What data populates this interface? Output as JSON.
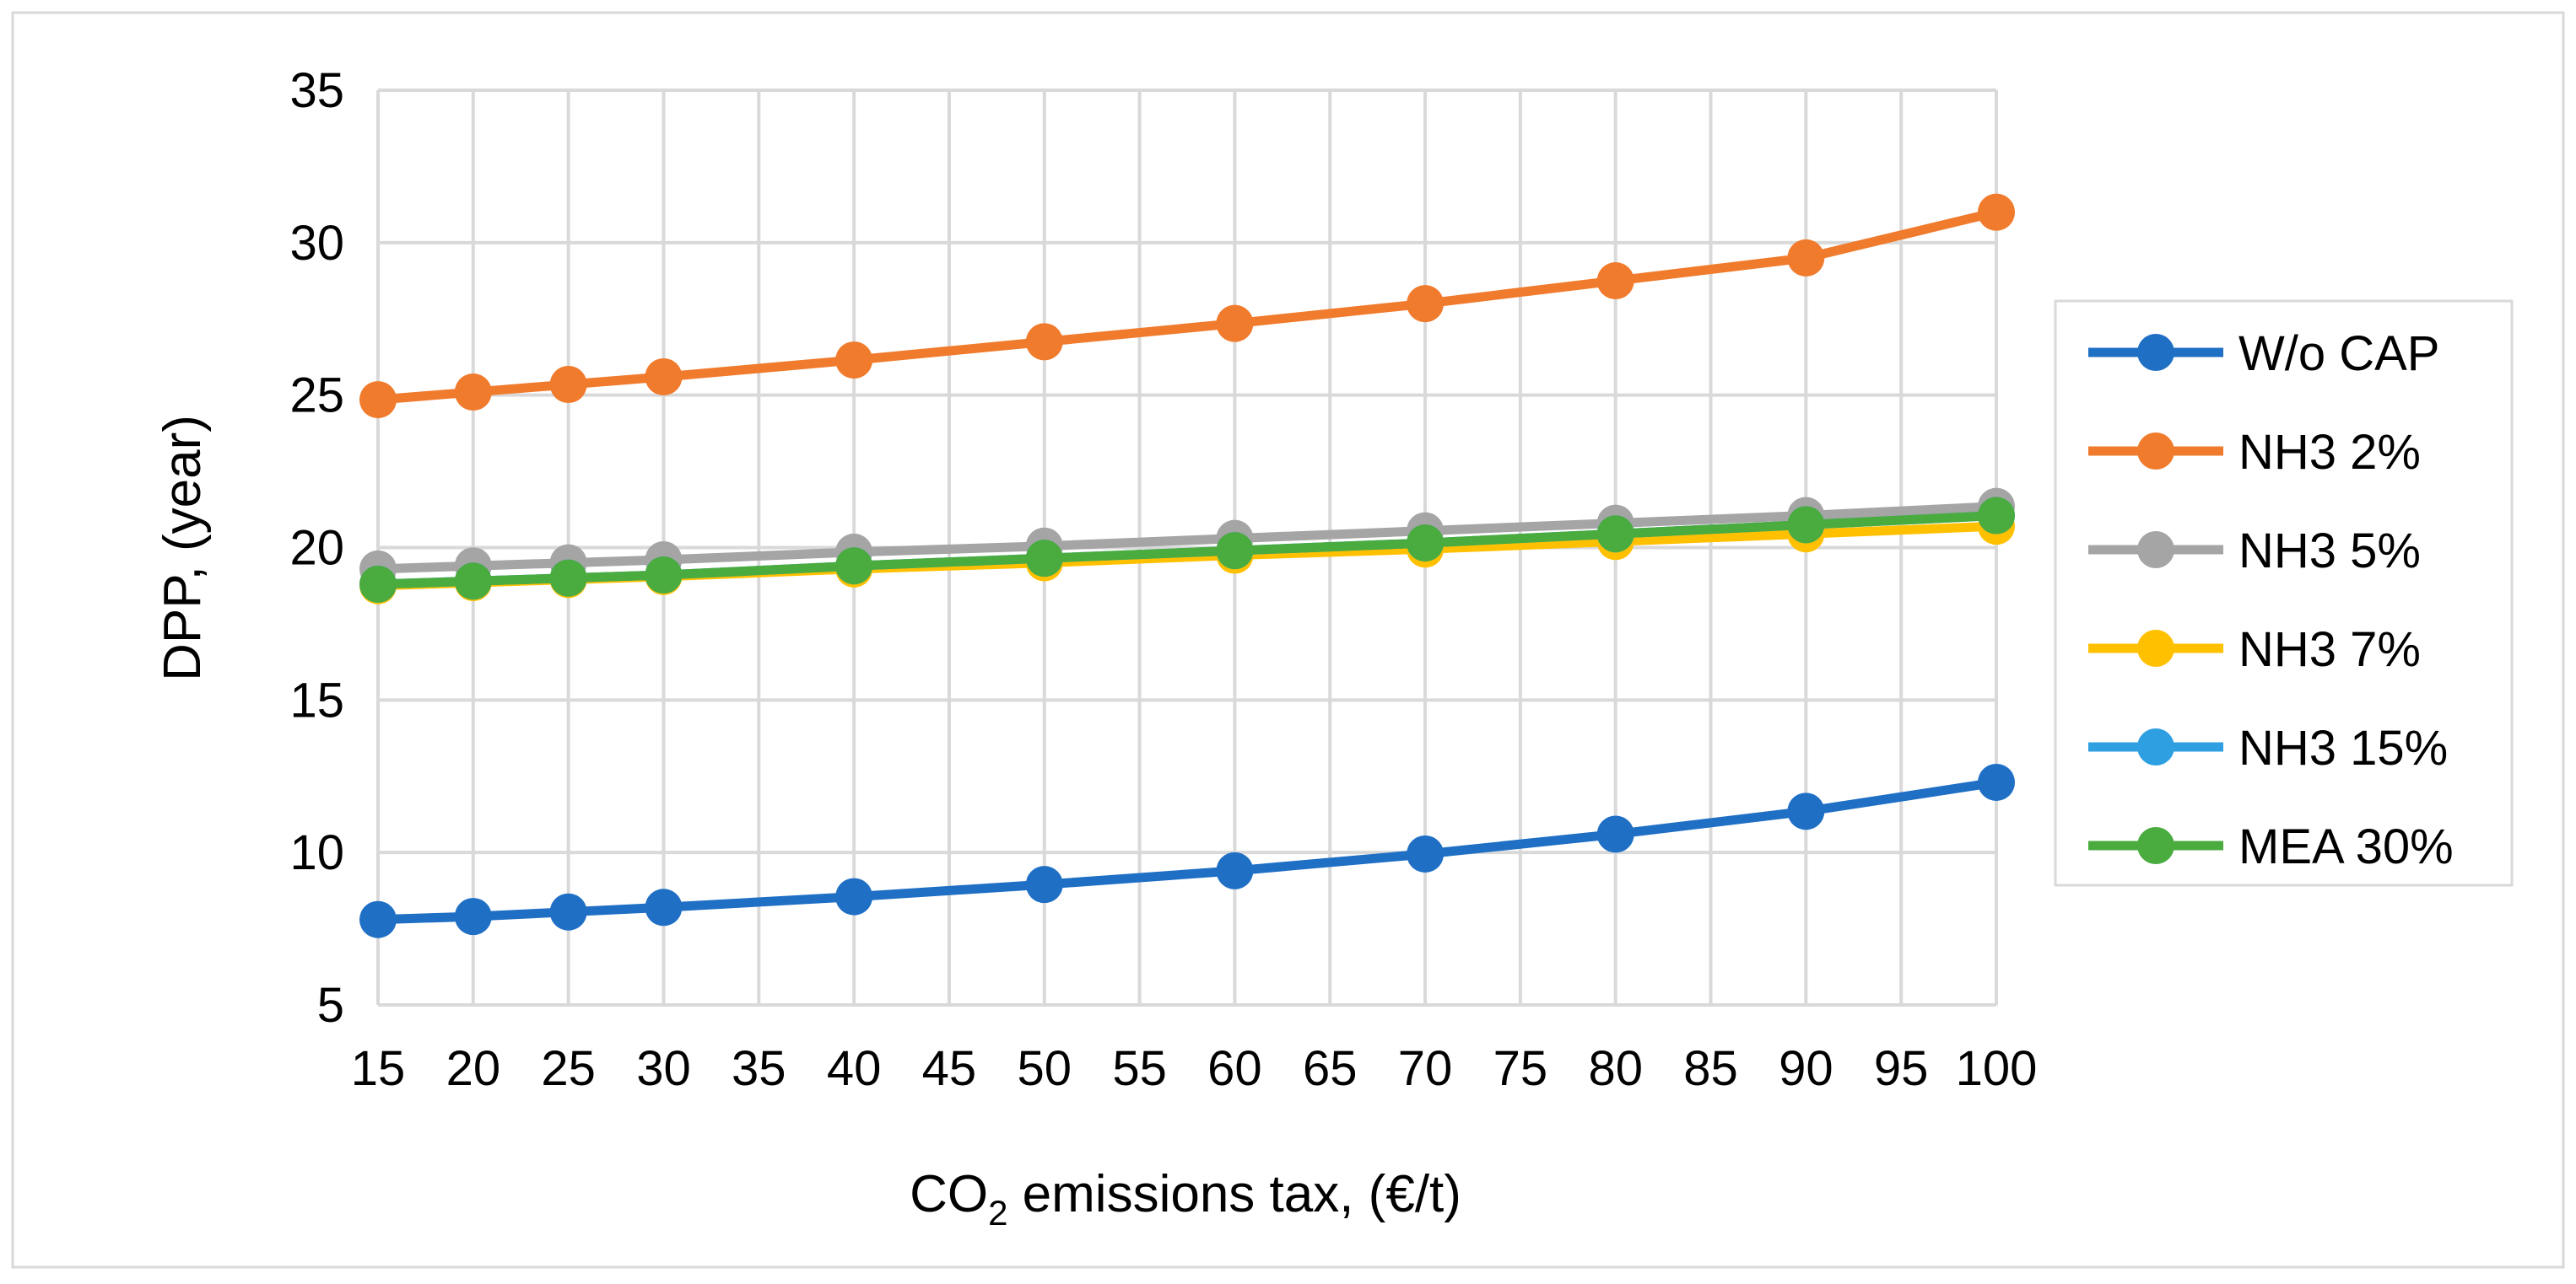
{
  "chart_data": {
    "type": "line",
    "title": "",
    "xlabel": "CO",
    "xlabel_subscript": "2",
    "xlabel_rest": " emissions tax, (€/t)",
    "ylabel": "DPP, (year)",
    "xlim": [
      15,
      100
    ],
    "ylim": [
      5,
      35
    ],
    "x_ticks": [
      15,
      20,
      25,
      30,
      35,
      40,
      45,
      50,
      55,
      60,
      65,
      70,
      75,
      80,
      85,
      90,
      95,
      100
    ],
    "y_ticks": [
      5,
      10,
      15,
      20,
      25,
      30,
      35
    ],
    "grid": true,
    "legend_position": "right",
    "x": [
      15,
      20,
      25,
      30,
      40,
      50,
      60,
      70,
      80,
      90,
      100
    ],
    "series": [
      {
        "name": "W/o CAP",
        "color": "#1f6fc5",
        "values": [
          7.8,
          7.9,
          8.05,
          8.2,
          8.55,
          8.95,
          9.4,
          9.95,
          10.6,
          11.35,
          12.3
        ]
      },
      {
        "name": "NH3 2%",
        "color": "#f07b2d",
        "values": [
          24.85,
          25.1,
          25.35,
          25.6,
          26.15,
          26.75,
          27.35,
          28.0,
          28.75,
          29.5,
          31.0
        ]
      },
      {
        "name": "NH3 5%",
        "color": "#a5a5a5",
        "values": [
          19.3,
          19.4,
          19.5,
          19.6,
          19.85,
          20.05,
          20.3,
          20.55,
          20.8,
          21.05,
          21.35
        ]
      },
      {
        "name": "NH3 7%",
        "color": "#ffc000",
        "values": [
          18.75,
          18.85,
          18.95,
          19.05,
          19.3,
          19.5,
          19.75,
          19.95,
          20.2,
          20.45,
          20.7
        ]
      },
      {
        "name": "NH3 15%",
        "color": "#2e9fe0",
        "values": [
          18.8,
          18.9,
          19.0,
          19.1,
          19.4,
          19.65,
          19.9,
          20.15,
          20.45,
          20.75,
          21.05
        ]
      },
      {
        "name": "MEA 30%",
        "color": "#4aab3f",
        "values": [
          18.8,
          18.9,
          19.0,
          19.1,
          19.4,
          19.65,
          19.9,
          20.15,
          20.45,
          20.75,
          21.05
        ]
      }
    ]
  }
}
